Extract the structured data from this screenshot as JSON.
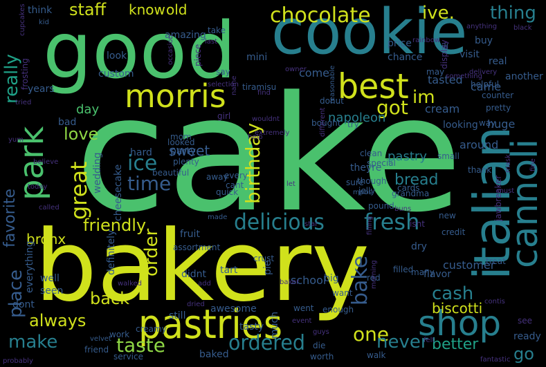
{
  "palette": {
    "background": "#000000",
    "yellow": "#d0e11c",
    "lime": "#8ed645",
    "green": "#4ac16d",
    "teal": "#1fa187",
    "cyan": "#277f8e",
    "blue": "#365c8d",
    "indigo": "#46327e",
    "purple": "#440154"
  },
  "words": [
    {
      "text": "cake",
      "color": "#4ac16d"
    },
    {
      "text": "bakery",
      "color": "#d0e11c"
    },
    {
      "text": "good",
      "color": "#4ac16d"
    },
    {
      "text": "cookie",
      "color": "#277f8e"
    },
    {
      "text": "pastries",
      "color": "#d0e11c"
    },
    {
      "text": "best",
      "color": "#d0e11c"
    },
    {
      "text": "italian",
      "color": "#277f8e"
    },
    {
      "text": "cannoli",
      "color": "#277f8e"
    },
    {
      "text": "shop",
      "color": "#277f8e"
    },
    {
      "text": "morris",
      "color": "#d0e11c"
    },
    {
      "text": "park",
      "color": "#4ac16d"
    },
    {
      "text": "chocolate",
      "color": "#d0e11c"
    },
    {
      "text": "delicious",
      "color": "#277f8e"
    },
    {
      "text": "fresh",
      "color": "#277f8e"
    },
    {
      "text": "ive.",
      "color": "#d0e11c"
    },
    {
      "text": "thing",
      "color": "#277f8e"
    },
    {
      "text": "really",
      "color": "#1fa187"
    },
    {
      "text": "staff",
      "color": "#d0e11c"
    },
    {
      "text": "know",
      "color": "#d0e11c"
    },
    {
      "text": "old",
      "color": "#d0e11c"
    },
    {
      "text": "im",
      "color": "#d0e11c"
    },
    {
      "text": "got",
      "color": "#d0e11c"
    },
    {
      "text": "birthday",
      "color": "#d0e11c"
    },
    {
      "text": "great",
      "color": "#d0e11c"
    },
    {
      "text": "ice",
      "color": "#277f8e"
    },
    {
      "text": "time",
      "color": "#365c8d"
    },
    {
      "text": "love",
      "color": "#8ed645"
    },
    {
      "text": "friendly",
      "color": "#d0e11c"
    },
    {
      "text": "order",
      "color": "#d0e11c"
    },
    {
      "text": "ordered",
      "color": "#277f8e"
    },
    {
      "text": "bake",
      "color": "#365c8d"
    },
    {
      "text": "cash",
      "color": "#277f8e"
    },
    {
      "text": "biscotti",
      "color": "#d0e11c"
    },
    {
      "text": "one",
      "color": "#d0e11c"
    },
    {
      "text": "always",
      "color": "#d0e11c"
    },
    {
      "text": "back",
      "color": "#d0e11c"
    },
    {
      "text": "make",
      "color": "#277f8e"
    },
    {
      "text": "taste",
      "color": "#8ed645"
    },
    {
      "text": "never",
      "color": "#277f8e"
    },
    {
      "text": "better",
      "color": "#1fa187"
    },
    {
      "text": "place",
      "color": "#365c8d"
    },
    {
      "text": "favorite",
      "color": "#365c8d"
    },
    {
      "text": "bread",
      "color": "#277f8e"
    },
    {
      "text": "sweet",
      "color": "#365c8d"
    },
    {
      "text": "day",
      "color": "#4ac16d"
    },
    {
      "text": "napoleon",
      "color": "#277f8e"
    },
    {
      "text": "pastry",
      "color": "#277f8e"
    },
    {
      "text": "school",
      "color": "#365c8d"
    },
    {
      "text": "customer",
      "color": "#365c8d"
    },
    {
      "text": "go",
      "color": "#277f8e"
    },
    {
      "text": "ready",
      "color": "#365c8d"
    },
    {
      "text": "come",
      "color": "#365c8d"
    },
    {
      "text": "tasted",
      "color": "#365c8d"
    },
    {
      "text": "came",
      "color": "#365c8d"
    },
    {
      "text": "huge",
      "color": "#365c8d"
    },
    {
      "text": "cream",
      "color": "#365c8d"
    },
    {
      "text": "looking",
      "color": "#365c8d"
    },
    {
      "text": "around",
      "color": "#365c8d"
    },
    {
      "text": "mini",
      "color": "#365c8d"
    },
    {
      "text": "amazing",
      "color": "#365c8d"
    },
    {
      "text": "price",
      "color": "#365c8d"
    },
    {
      "text": "chance",
      "color": "#365c8d"
    },
    {
      "text": "visit",
      "color": "#365c8d"
    },
    {
      "text": "buy",
      "color": "#365c8d"
    },
    {
      "text": "think",
      "color": "#365c8d"
    },
    {
      "text": "take",
      "color": "#365c8d"
    },
    {
      "text": "kid",
      "color": "#365c8d"
    },
    {
      "text": "look",
      "color": "#365c8d"
    },
    {
      "text": "custom",
      "color": "#365c8d"
    },
    {
      "text": "hard",
      "color": "#365c8d"
    },
    {
      "text": "party",
      "color": "#365c8d"
    },
    {
      "text": "wedding",
      "color": "#365c8d"
    },
    {
      "text": "mom",
      "color": "#365c8d"
    },
    {
      "text": "cheesecake",
      "color": "#365c8d"
    },
    {
      "text": "bronx",
      "color": "#d0e11c"
    },
    {
      "text": "fruit",
      "color": "#365c8d"
    },
    {
      "text": "assortment",
      "color": "#365c8d"
    },
    {
      "text": "didnt",
      "color": "#365c8d"
    },
    {
      "text": "definitely",
      "color": "#365c8d"
    },
    {
      "text": "everything",
      "color": "#365c8d"
    },
    {
      "text": "well",
      "color": "#365c8d"
    },
    {
      "text": "seen",
      "color": "#365c8d"
    },
    {
      "text": "dont",
      "color": "#365c8d"
    },
    {
      "text": "creamy",
      "color": "#365c8d"
    },
    {
      "text": "still",
      "color": "#365c8d"
    },
    {
      "text": "work",
      "color": "#365c8d"
    },
    {
      "text": "friend",
      "color": "#365c8d"
    },
    {
      "text": "service",
      "color": "#365c8d"
    },
    {
      "text": "velvet",
      "color": "#365c8d"
    },
    {
      "text": "baked",
      "color": "#365c8d"
    },
    {
      "text": "awesome",
      "color": "#365c8d"
    },
    {
      "text": "tasty",
      "color": "#365c8d"
    },
    {
      "text": "much",
      "color": "#365c8d"
    },
    {
      "text": "walk",
      "color": "#365c8d"
    },
    {
      "text": "worth",
      "color": "#365c8d"
    },
    {
      "text": "die",
      "color": "#365c8d"
    },
    {
      "text": "enough",
      "color": "#365c8d"
    },
    {
      "text": "went",
      "color": "#365c8d"
    },
    {
      "text": "want",
      "color": "#365c8d"
    },
    {
      "text": "big",
      "color": "#365c8d"
    },
    {
      "text": "red",
      "color": "#365c8d"
    },
    {
      "text": "crust",
      "color": "#365c8d"
    },
    {
      "text": "pie",
      "color": "#365c8d"
    },
    {
      "text": "tart",
      "color": "#365c8d"
    },
    {
      "text": "filled",
      "color": "#365c8d"
    },
    {
      "text": "many",
      "color": "#365c8d"
    },
    {
      "text": "flavor",
      "color": "#365c8d"
    },
    {
      "text": "dry",
      "color": "#365c8d"
    },
    {
      "text": "treat",
      "color": "#365c8d"
    },
    {
      "text": "credit",
      "color": "#365c8d"
    },
    {
      "text": "new",
      "color": "#365c8d"
    },
    {
      "text": "grandma",
      "color": "#365c8d"
    },
    {
      "text": "cards",
      "color": "#365c8d"
    },
    {
      "text": "pound",
      "color": "#365c8d"
    },
    {
      "text": "jelly",
      "color": "#365c8d"
    },
    {
      "text": "quick",
      "color": "#365c8d"
    },
    {
      "text": "away",
      "color": "#365c8d"
    },
    {
      "text": "cant",
      "color": "#365c8d"
    },
    {
      "text": "every",
      "color": "#365c8d"
    },
    {
      "text": "plenty",
      "color": "#365c8d"
    },
    {
      "text": "beautiful",
      "color": "#365c8d"
    },
    {
      "text": "looked",
      "color": "#365c8d"
    },
    {
      "text": "theyre",
      "color": "#365c8d"
    },
    {
      "text": "thank",
      "color": "#365c8d"
    },
    {
      "text": "small",
      "color": "#365c8d"
    },
    {
      "text": "special",
      "color": "#365c8d"
    },
    {
      "text": "clean",
      "color": "#365c8d"
    },
    {
      "text": "try",
      "color": "#365c8d"
    },
    {
      "text": "bought",
      "color": "#365c8d"
    },
    {
      "text": "sure",
      "color": "#365c8d"
    },
    {
      "text": "though",
      "color": "#365c8d"
    },
    {
      "text": "mpbs",
      "color": "#365c8d"
    },
    {
      "text": "made",
      "color": "#365c8d"
    },
    {
      "text": "bad",
      "color": "#365c8d"
    },
    {
      "text": "years",
      "color": "#365c8d"
    },
    {
      "text": "rainbow",
      "color": "#46327e"
    },
    {
      "text": "display",
      "color": "#46327e"
    },
    {
      "text": "real",
      "color": "#365c8d"
    },
    {
      "text": "another",
      "color": "#365c8d"
    },
    {
      "text": "helpful",
      "color": "#365c8d"
    },
    {
      "text": "pretty",
      "color": "#365c8d"
    },
    {
      "text": "counter",
      "color": "#365c8d"
    },
    {
      "text": "way",
      "color": "#365c8d"
    },
    {
      "text": "may",
      "color": "#365c8d"
    },
    {
      "text": "ill",
      "color": "#365c8d"
    },
    {
      "text": "say",
      "color": "#365c8d"
    },
    {
      "text": "piece",
      "color": "#46327e"
    },
    {
      "text": "last",
      "color": "#46327e"
    },
    {
      "text": "occasion",
      "color": "#46327e"
    },
    {
      "text": "selection",
      "color": "#46327e"
    },
    {
      "text": "tiramisu",
      "color": "#365c8d"
    },
    {
      "text": "donut",
      "color": "#365c8d"
    },
    {
      "text": "reasonable",
      "color": "#365c8d"
    },
    {
      "text": "frosting",
      "color": "#46327e"
    },
    {
      "text": "girl",
      "color": "#46327e"
    },
    {
      "text": "jawbreaker",
      "color": "#46327e"
    },
    {
      "text": "mask",
      "color": "#46327e"
    },
    {
      "text": "let",
      "color": "#46327e"
    },
    {
      "text": "star",
      "color": "#46327e"
    },
    {
      "text": "black",
      "color": "#46327e"
    },
    {
      "text": "owner",
      "color": "#46327e"
    },
    {
      "text": "filling",
      "color": "#46327e"
    },
    {
      "text": "morning",
      "color": "#46327e"
    },
    {
      "text": "baker",
      "color": "#46327e"
    },
    {
      "text": "tried",
      "color": "#46327e"
    },
    {
      "text": "today",
      "color": "#46327e"
    },
    {
      "text": "believe",
      "color": "#46327e"
    },
    {
      "text": "extremely",
      "color": "#46327e"
    },
    {
      "text": "different",
      "color": "#46327e"
    },
    {
      "text": "buns",
      "color": "#46327e"
    },
    {
      "text": "see",
      "color": "#46327e"
    },
    {
      "text": "event",
      "color": "#46327e"
    },
    {
      "text": "guys",
      "color": "#46327e"
    },
    {
      "text": "probably",
      "color": "#46327e"
    },
    {
      "text": "fantastic",
      "color": "#46327e"
    },
    {
      "text": "contis",
      "color": "#46327e"
    },
    {
      "text": "isnt",
      "color": "#46327e"
    },
    {
      "text": "must",
      "color": "#46327e"
    },
    {
      "text": "called",
      "color": "#46327e"
    },
    {
      "text": "walked",
      "color": "#46327e"
    },
    {
      "text": "add",
      "color": "#46327e"
    },
    {
      "text": "dried",
      "color": "#46327e"
    },
    {
      "text": "name",
      "color": "#46327e"
    },
    {
      "text": "find",
      "color": "#46327e"
    },
    {
      "text": "help",
      "color": "#46327e"
    },
    {
      "text": "wouldnt",
      "color": "#46327e"
    },
    {
      "text": "anything",
      "color": "#46327e"
    },
    {
      "text": "something",
      "color": "#46327e"
    },
    {
      "text": "delivery",
      "color": "#46327e"
    },
    {
      "text": "felt",
      "color": "#46327e"
    },
    {
      "text": "fine",
      "color": "#46327e"
    },
    {
      "text": "yum",
      "color": "#46327e"
    },
    {
      "text": "cupcakes",
      "color": "#46327e"
    }
  ]
}
